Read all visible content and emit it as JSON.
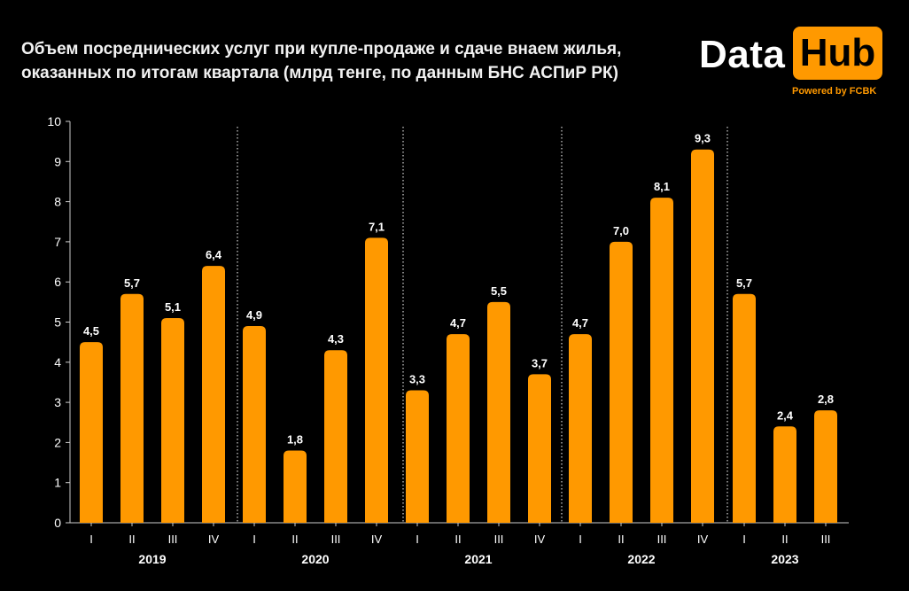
{
  "title_lines": [
    "Объем посреднических услуг при купле-продаже и сдаче внаем жилья,",
    "оказанных по итогам квартала (млрд тенге, по данным БНС АСПиР РК)"
  ],
  "logo": {
    "word1": "Data",
    "word2": "Hub",
    "tagline": "Powered by FCBK"
  },
  "colors": {
    "background": "#000000",
    "bar": "#ff9900",
    "text": "#ffffff",
    "axis": "#cccccc"
  },
  "chart_data": {
    "type": "bar",
    "title": "Объем посреднических услуг при купле-продаже и сдаче внаем жилья, оказанных по итогам квартала (млрд тенге, по данным БНС АСПиР РК)",
    "xlabel": "",
    "ylabel": "",
    "ylim": [
      0,
      10
    ],
    "yticks": [
      0,
      1,
      2,
      3,
      4,
      5,
      6,
      7,
      8,
      9,
      10
    ],
    "grid": false,
    "legend": "none",
    "groups": [
      {
        "year": "2019",
        "quarters": [
          "I",
          "II",
          "III",
          "IV"
        ],
        "values": [
          4.5,
          5.7,
          5.1,
          6.4
        ],
        "labels": [
          "4,5",
          "5,7",
          "5,1",
          "6,4"
        ]
      },
      {
        "year": "2020",
        "quarters": [
          "I",
          "II",
          "III",
          "IV"
        ],
        "values": [
          4.9,
          1.8,
          4.3,
          7.1
        ],
        "labels": [
          "4,9",
          "1,8",
          "4,3",
          "7,1"
        ]
      },
      {
        "year": "2021",
        "quarters": [
          "I",
          "II",
          "III",
          "IV"
        ],
        "values": [
          3.3,
          4.7,
          5.5,
          3.7
        ],
        "labels": [
          "3,3",
          "4,7",
          "5,5",
          "3,7"
        ]
      },
      {
        "year": "2022",
        "quarters": [
          "I",
          "II",
          "III",
          "IV"
        ],
        "values": [
          4.7,
          7.0,
          8.1,
          9.3
        ],
        "labels": [
          "4,7",
          "7,0",
          "8,1",
          "9,3"
        ]
      },
      {
        "year": "2023",
        "quarters": [
          "I",
          "II",
          "III"
        ],
        "values": [
          5.7,
          2.4,
          2.8
        ],
        "labels": [
          "5,7",
          "2,4",
          "2,8"
        ]
      }
    ]
  }
}
